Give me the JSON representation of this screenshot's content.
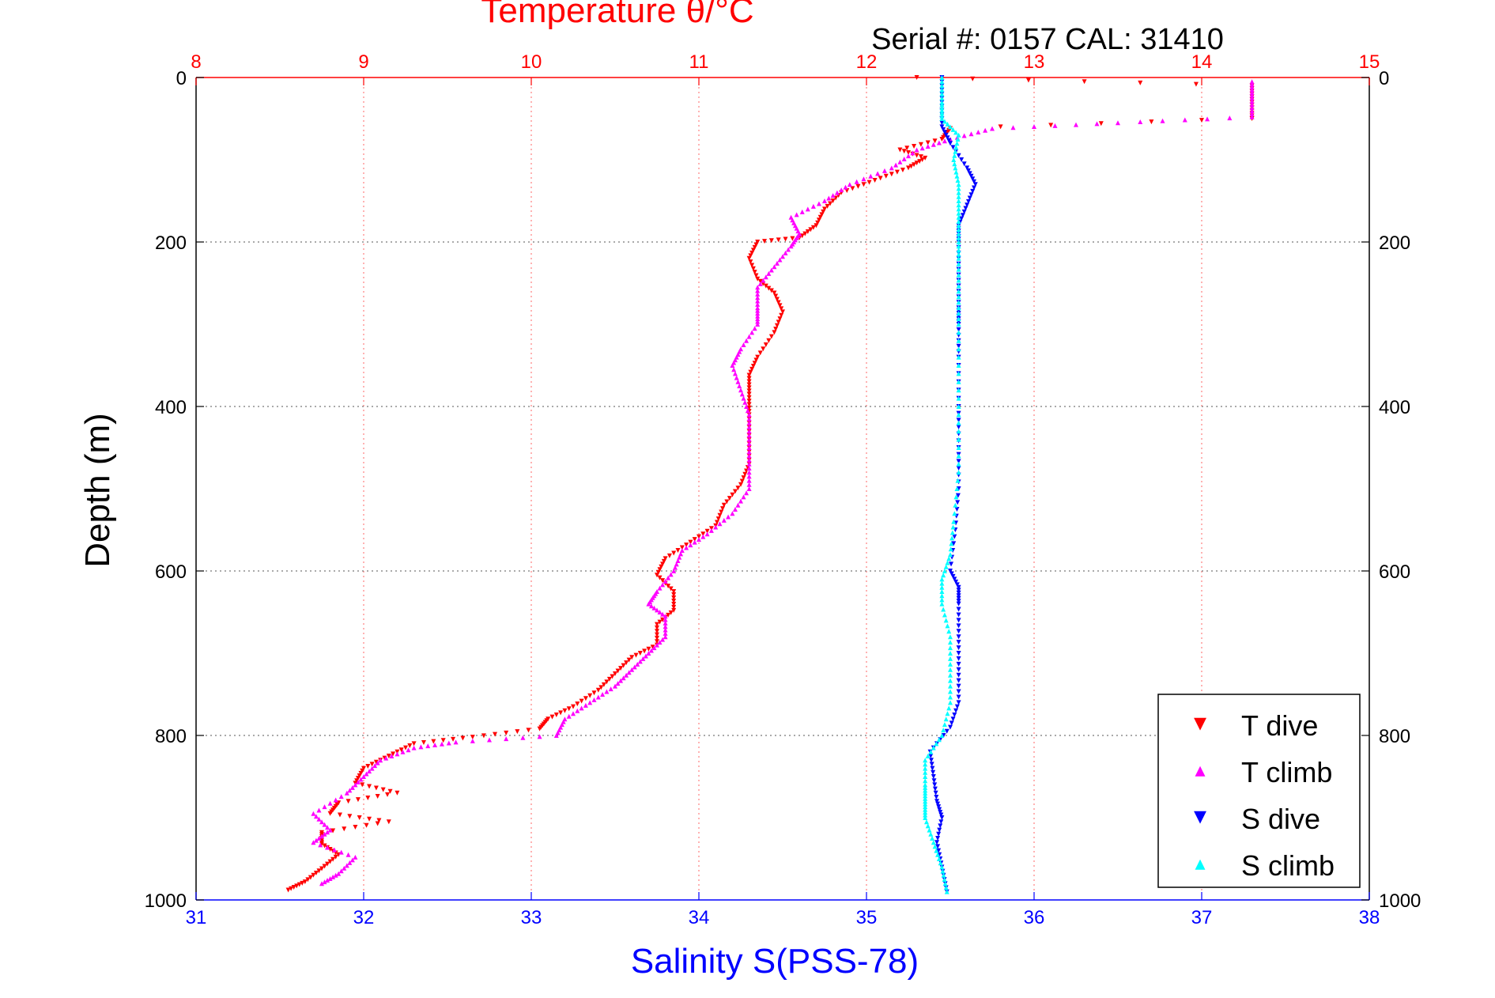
{
  "chart_data": {
    "type": "scatter",
    "title": "Temperature θ/°C",
    "annotation": "Serial #: 0157  CAL: 31410",
    "ylabel": "Depth (m)",
    "xlabel_bottom": "Salinity S(PSS-78)",
    "x_top": {
      "range": [
        8,
        15
      ],
      "ticks": [
        "8",
        "9",
        "10",
        "11",
        "12",
        "13",
        "14",
        "15"
      ],
      "color": "#ff0000"
    },
    "x_bottom": {
      "range": [
        31,
        38
      ],
      "ticks": [
        "31",
        "32",
        "33",
        "34",
        "35",
        "36",
        "37",
        "38"
      ],
      "color": "#0000ff"
    },
    "y": {
      "range": [
        0,
        1000
      ],
      "reversed": true,
      "ticks": [
        "0",
        "200",
        "400",
        "600",
        "800",
        "1000"
      ]
    },
    "grid": true,
    "legend_position": "bottom-right",
    "colors": {
      "t_dive": "#ff0000",
      "t_climb": "#ff00ff",
      "s_dive": "#0000ff",
      "s_climb": "#00ffff",
      "title": "#ff0000",
      "xlabel": "#0000ff"
    },
    "series": [
      {
        "name": "T dive",
        "axis": "temperature",
        "marker": "▼",
        "points": [
          [
            12.3,
            0
          ],
          [
            14.3,
            10
          ],
          [
            14.3,
            30
          ],
          [
            14.3,
            50
          ],
          [
            12.5,
            62
          ],
          [
            12.45,
            75
          ],
          [
            12.2,
            88
          ],
          [
            12.35,
            98
          ],
          [
            12.25,
            110
          ],
          [
            12.05,
            125
          ],
          [
            11.85,
            140
          ],
          [
            11.75,
            160
          ],
          [
            11.7,
            180
          ],
          [
            11.6,
            195
          ],
          [
            11.35,
            200
          ],
          [
            11.3,
            220
          ],
          [
            11.35,
            245
          ],
          [
            11.45,
            262
          ],
          [
            11.5,
            285
          ],
          [
            11.45,
            310
          ],
          [
            11.35,
            340
          ],
          [
            11.3,
            362
          ],
          [
            11.3,
            385
          ],
          [
            11.3,
            410
          ],
          [
            11.3,
            440
          ],
          [
            11.3,
            470
          ],
          [
            11.25,
            495
          ],
          [
            11.15,
            520
          ],
          [
            11.1,
            545
          ],
          [
            10.95,
            565
          ],
          [
            10.8,
            585
          ],
          [
            10.75,
            605
          ],
          [
            10.85,
            625
          ],
          [
            10.85,
            648
          ],
          [
            10.75,
            665
          ],
          [
            10.75,
            690
          ],
          [
            10.6,
            705
          ],
          [
            10.5,
            725
          ],
          [
            10.4,
            745
          ],
          [
            10.25,
            765
          ],
          [
            10.1,
            780
          ],
          [
            10.05,
            792
          ],
          [
            9.65,
            802
          ],
          [
            9.3,
            810
          ],
          [
            9.15,
            825
          ],
          [
            9.0,
            840
          ],
          [
            8.95,
            858
          ],
          [
            9.2,
            870
          ],
          [
            8.85,
            882
          ],
          [
            8.8,
            895
          ],
          [
            9.15,
            905
          ],
          [
            8.75,
            918
          ],
          [
            8.75,
            932
          ],
          [
            8.85,
            945
          ],
          [
            8.75,
            962
          ],
          [
            8.65,
            978
          ],
          [
            8.55,
            988
          ]
        ]
      },
      {
        "name": "T climb",
        "axis": "temperature",
        "marker": "▲",
        "points": [
          [
            14.3,
            5
          ],
          [
            14.3,
            25
          ],
          [
            14.3,
            48
          ],
          [
            13.5,
            55
          ],
          [
            12.75,
            62
          ],
          [
            12.5,
            75
          ],
          [
            12.3,
            88
          ],
          [
            12.15,
            110
          ],
          [
            11.9,
            130
          ],
          [
            11.75,
            150
          ],
          [
            11.55,
            170
          ],
          [
            11.6,
            190
          ],
          [
            11.55,
            205
          ],
          [
            11.45,
            230
          ],
          [
            11.35,
            255
          ],
          [
            11.35,
            280
          ],
          [
            11.35,
            300
          ],
          [
            11.25,
            330
          ],
          [
            11.2,
            350
          ],
          [
            11.25,
            380
          ],
          [
            11.3,
            410
          ],
          [
            11.3,
            440
          ],
          [
            11.3,
            470
          ],
          [
            11.3,
            500
          ],
          [
            11.2,
            530
          ],
          [
            11.05,
            555
          ],
          [
            10.9,
            575
          ],
          [
            10.85,
            600
          ],
          [
            10.75,
            625
          ],
          [
            10.7,
            640
          ],
          [
            10.8,
            655
          ],
          [
            10.8,
            680
          ],
          [
            10.7,
            700
          ],
          [
            10.6,
            720
          ],
          [
            10.5,
            740
          ],
          [
            10.35,
            760
          ],
          [
            10.2,
            780
          ],
          [
            10.15,
            800
          ],
          [
            9.55,
            808
          ],
          [
            9.3,
            815
          ],
          [
            9.1,
            830
          ],
          [
            9.0,
            850
          ],
          [
            8.9,
            870
          ],
          [
            8.7,
            895
          ],
          [
            8.8,
            915
          ],
          [
            8.7,
            930
          ],
          [
            8.95,
            948
          ],
          [
            8.85,
            968
          ],
          [
            8.75,
            980
          ]
        ]
      },
      {
        "name": "S dive",
        "axis": "salinity",
        "marker": "▼",
        "points": [
          [
            35.45,
            0
          ],
          [
            35.45,
            30
          ],
          [
            35.45,
            60
          ],
          [
            35.5,
            80
          ],
          [
            35.6,
            110
          ],
          [
            35.65,
            130
          ],
          [
            35.6,
            155
          ],
          [
            35.55,
            180
          ],
          [
            35.55,
            200
          ],
          [
            35.55,
            240
          ],
          [
            35.55,
            280
          ],
          [
            35.55,
            300
          ],
          [
            35.55,
            340
          ],
          [
            35.55,
            400
          ],
          [
            35.55,
            450
          ],
          [
            35.55,
            500
          ],
          [
            35.53,
            550
          ],
          [
            35.5,
            600
          ],
          [
            35.55,
            620
          ],
          [
            35.55,
            640
          ],
          [
            35.55,
            680
          ],
          [
            35.55,
            720
          ],
          [
            35.55,
            760
          ],
          [
            35.5,
            790
          ],
          [
            35.38,
            820
          ],
          [
            35.4,
            850
          ],
          [
            35.42,
            880
          ],
          [
            35.45,
            900
          ],
          [
            35.42,
            930
          ],
          [
            35.45,
            960
          ],
          [
            35.48,
            990
          ]
        ]
      },
      {
        "name": "S climb",
        "axis": "salinity",
        "marker": "▲",
        "points": [
          [
            35.45,
            0
          ],
          [
            35.45,
            30
          ],
          [
            35.45,
            50
          ],
          [
            35.55,
            70
          ],
          [
            35.52,
            100
          ],
          [
            35.55,
            130
          ],
          [
            35.55,
            160
          ],
          [
            35.55,
            190
          ],
          [
            35.55,
            220
          ],
          [
            35.55,
            260
          ],
          [
            35.55,
            300
          ],
          [
            35.55,
            360
          ],
          [
            35.55,
            420
          ],
          [
            35.55,
            480
          ],
          [
            35.52,
            540
          ],
          [
            35.5,
            580
          ],
          [
            35.45,
            610
          ],
          [
            35.45,
            640
          ],
          [
            35.5,
            680
          ],
          [
            35.5,
            720
          ],
          [
            35.5,
            760
          ],
          [
            35.45,
            800
          ],
          [
            35.35,
            830
          ],
          [
            35.35,
            860
          ],
          [
            35.35,
            880
          ],
          [
            35.35,
            900
          ],
          [
            35.4,
            930
          ],
          [
            35.45,
            960
          ],
          [
            35.48,
            990
          ]
        ]
      }
    ]
  }
}
